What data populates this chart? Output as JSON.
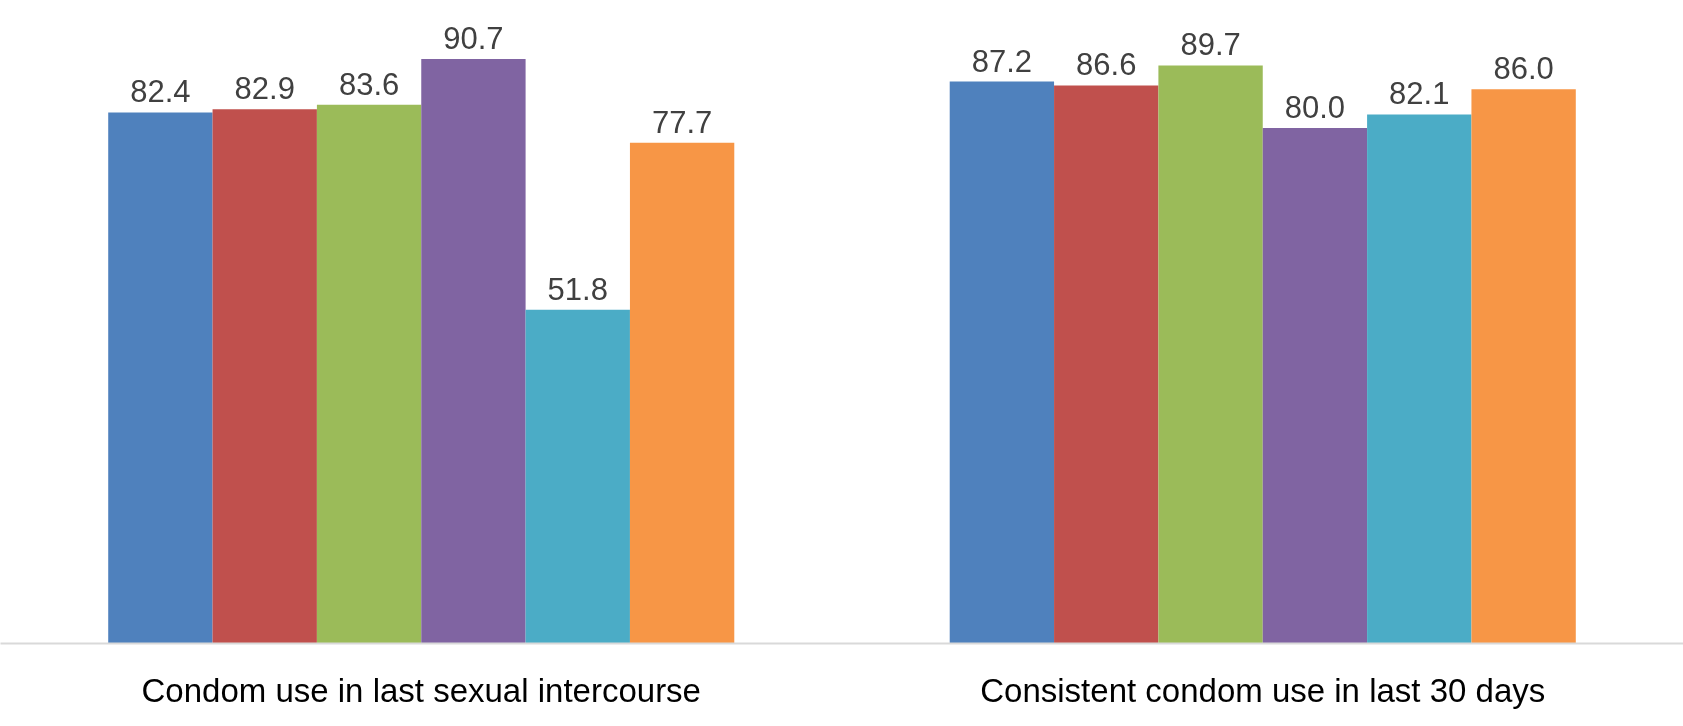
{
  "chart_data": {
    "type": "bar",
    "categories": [
      "Condom use in last sexual intercourse",
      "Consistent condom use in last 30 days"
    ],
    "series": [
      {
        "color": "#4f81bd",
        "values": [
          82.4,
          87.2
        ],
        "value_labels": [
          "82.4",
          "87.2"
        ]
      },
      {
        "color": "#c0504d",
        "values": [
          82.9,
          86.6
        ],
        "value_labels": [
          "82.9",
          "86.6"
        ]
      },
      {
        "color": "#9bbb59",
        "values": [
          83.6,
          89.7
        ],
        "value_labels": [
          "83.6",
          "89.7"
        ]
      },
      {
        "color": "#8064a2",
        "values": [
          90.7,
          80.0
        ],
        "value_labels": [
          "90.7",
          "80.0"
        ]
      },
      {
        "color": "#4bacc6",
        "values": [
          51.8,
          82.1
        ],
        "value_labels": [
          "51.8",
          "82.1"
        ]
      },
      {
        "color": "#f79646",
        "values": [
          77.7,
          86.0
        ],
        "value_labels": [
          "77.7",
          "86.0"
        ]
      }
    ]
  }
}
